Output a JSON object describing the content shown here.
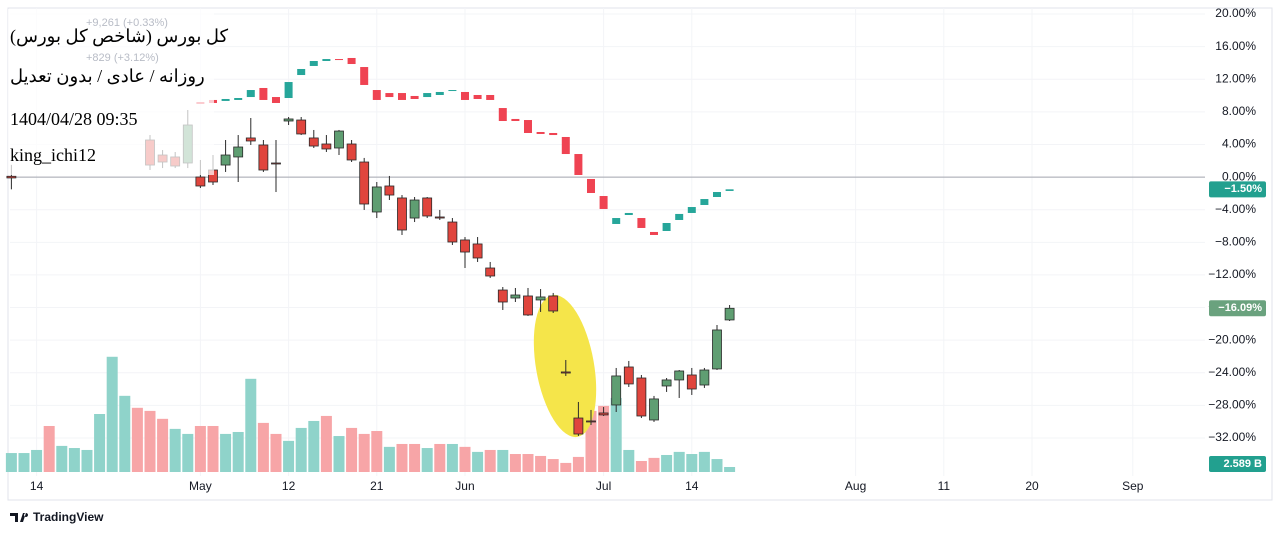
{
  "chart_data": {
    "type": "candlestick",
    "title": "کل بورس (شاخص کل بورس)",
    "subtitle": "روزانه / عادی / بدون تعدیل",
    "timestamp": "1404/04/28 09:35",
    "author": "king_ichi12",
    "legend_values": [
      "+9,261 (+0.33%)",
      "+829 (+3.12%)"
    ],
    "branding": "TradingView",
    "xlim": [
      -0.11,
      94.73
    ],
    "xticks": [
      {
        "value": 2,
        "label": "14"
      },
      {
        "value": 15,
        "label": "May"
      },
      {
        "value": 22,
        "label": "12"
      },
      {
        "value": 29,
        "label": "21"
      },
      {
        "value": 36,
        "label": "Jun"
      },
      {
        "value": 47,
        "label": "Jul"
      },
      {
        "value": 54,
        "label": "14"
      },
      {
        "value": 67,
        "label": "Aug"
      },
      {
        "value": 74,
        "label": "11"
      },
      {
        "value": 81,
        "label": "20"
      },
      {
        "value": 89,
        "label": "Sep"
      }
    ],
    "ylim": [
      -36.17,
      20.74
    ],
    "yticks": [
      {
        "value": 20,
        "label": "20.00%"
      },
      {
        "value": 16,
        "label": "16.00%"
      },
      {
        "value": 12,
        "label": "12.00%"
      },
      {
        "value": 8,
        "label": "8.00%"
      },
      {
        "value": 4,
        "label": "4.00%"
      },
      {
        "value": 0,
        "label": "0.00%"
      },
      {
        "value": -4,
        "label": "−4.00%"
      },
      {
        "value": -8,
        "label": "−8.00%"
      },
      {
        "value": -12,
        "label": "−12.00%"
      },
      {
        "value": -16,
        "label": "−16.00%"
      },
      {
        "value": -20,
        "label": "−20.00%"
      },
      {
        "value": -24,
        "label": "−24.00%"
      },
      {
        "value": -28,
        "label": "−28.00%"
      },
      {
        "value": -32,
        "label": "−32.00%"
      }
    ],
    "baseline": 0,
    "y2lim": [
      0,
      240
    ],
    "series": [
      {
        "color_up": "#5f9e72",
        "color_down": "#e0453d",
        "outline": "#2a2a2a",
        "badge_color": "#6aa27e",
        "x": [
          0,
          11,
          12,
          13,
          14,
          15,
          16,
          17,
          18,
          19,
          20,
          21,
          22,
          23,
          24,
          25,
          26,
          27,
          28,
          29,
          30,
          31,
          32,
          33,
          34,
          35,
          36,
          37,
          38,
          39,
          40,
          41,
          42,
          43,
          44,
          45,
          46,
          47,
          48,
          49,
          50,
          51,
          52,
          53,
          54,
          55,
          56,
          57
        ],
        "open": [
          0.1,
          4.55,
          2.71,
          2.47,
          1.73,
          0.01,
          0.87,
          1.48,
          2.47,
          4.8,
          3.94,
          1.73,
          6.88,
          7.0,
          4.8,
          4.06,
          3.57,
          4.06,
          1.85,
          -4.28,
          -1.09,
          -2.56,
          -5.02,
          -2.56,
          -4.89,
          -5.51,
          -7.71,
          -8.2,
          -11.15,
          -13.85,
          -14.83,
          -14.58,
          -15.07,
          -14.58,
          -23.9,
          -29.55,
          -29.91,
          -28.93,
          -27.95,
          -23.29,
          -24.64,
          -29.79,
          -25.62,
          -24.88,
          -24.27,
          -25.5,
          -23.53,
          -17.52
        ],
        "high": [
          1.5,
          5.16,
          3.32,
          3.08,
          8.23,
          2.1,
          2.71,
          4.55,
          5.16,
          7.25,
          4.55,
          4.55,
          7.37,
          7.37,
          5.78,
          5.16,
          5.78,
          4.55,
          2.35,
          -0.6,
          0.14,
          -2.2,
          -2.44,
          -2.44,
          -4.03,
          -5.02,
          -7.35,
          -7.35,
          -10.41,
          -13.48,
          -13.6,
          -13.6,
          -13.73,
          -14.21,
          -22.43,
          -27.58,
          -28.56,
          -28.2,
          -23.41,
          -22.55,
          -24.27,
          -26.84,
          -24.64,
          -23.66,
          -23.41,
          -23.41,
          -18.14,
          -15.69
        ],
        "low": [
          -1.5,
          0.87,
          1.11,
          1.11,
          1.11,
          -1.34,
          -0.97,
          0.63,
          -0.6,
          3.94,
          0.63,
          -1.83,
          6.39,
          5.16,
          3.57,
          3.08,
          2.71,
          1.85,
          -4.03,
          -5.02,
          -2.81,
          -7.1,
          -5.51,
          -5.02,
          -5.26,
          -8.33,
          -11.15,
          -10.41,
          -12.37,
          -16.3,
          -15.32,
          -17.03,
          -16.54,
          -16.67,
          -24.39,
          -31.75,
          -30.4,
          -29.3,
          -28.81,
          -25.74,
          -29.55,
          -30.03,
          -26.35,
          -27.09,
          -26.72,
          -25.86,
          -23.66,
          -17.65
        ],
        "close": [
          -0.1,
          1.48,
          1.85,
          1.36,
          6.39,
          -1.09,
          -0.6,
          2.71,
          3.69,
          4.43,
          0.87,
          1.61,
          7.13,
          5.29,
          3.81,
          3.45,
          5.65,
          2.1,
          -3.3,
          -1.21,
          -2.2,
          -6.49,
          -2.81,
          -4.77,
          -5.02,
          -7.96,
          -9.19,
          -9.92,
          -12.13,
          -15.32,
          -14.46,
          -16.91,
          -14.7,
          -16.42,
          -24.03,
          -31.51,
          -30.03,
          -29.17,
          -24.39,
          -25.37,
          -29.3,
          -27.21,
          -24.88,
          -23.78,
          -25.99,
          -23.66,
          -18.75,
          -16.09
        ],
        "last_label": "−16.09%"
      },
      {
        "color_up": "#26a69a",
        "color_down": "#ef4352",
        "badge_color": "#22a08f",
        "x": [
          0,
          15,
          16,
          17,
          18,
          19,
          20,
          21,
          22,
          23,
          24,
          25,
          26,
          27,
          28,
          29,
          30,
          31,
          32,
          33,
          34,
          35,
          36,
          37,
          38,
          39,
          40,
          41,
          42,
          43,
          44,
          45,
          46,
          47,
          48,
          49,
          50,
          51,
          52,
          53,
          54,
          55,
          56,
          57
        ],
        "open": [
          0,
          9.21,
          9.46,
          9.34,
          9.46,
          9.82,
          10.93,
          9.82,
          9.7,
          12.52,
          13.63,
          14.24,
          14.48,
          14.61,
          13.5,
          10.68,
          10.31,
          10.31,
          9.95,
          9.82,
          10.07,
          10.56,
          10.44,
          10.07,
          10.07,
          8.47,
          7.13,
          7.0,
          5.53,
          5.41,
          4.92,
          2.83,
          -0.23,
          -2.32,
          -5.75,
          -4.65,
          -5.02,
          -6.73,
          -6.61,
          -5.26,
          -4.4,
          -3.42,
          -2.44,
          -1.7
        ],
        "close": [
          0,
          8.97,
          9.09,
          9.58,
          9.7,
          10.68,
          9.46,
          9.09,
          11.66,
          13.26,
          14.24,
          14.48,
          14.36,
          13.87,
          11.3,
          9.46,
          9.82,
          9.46,
          9.58,
          10.31,
          10.44,
          10.68,
          9.46,
          9.58,
          9.46,
          6.88,
          6.88,
          5.41,
          5.29,
          5.16,
          2.83,
          0.26,
          -1.95,
          -3.91,
          -5.02,
          -4.4,
          -6.24,
          -7.1,
          -5.63,
          -4.52,
          -3.67,
          -2.69,
          -1.83,
          -1.5
        ],
        "last_label": "−1.50%"
      }
    ],
    "volume": {
      "axis": "y2",
      "badge_color": "#22a08f",
      "x": [
        0,
        1,
        2,
        3,
        4,
        5,
        6,
        7,
        8,
        9,
        10,
        11,
        12,
        13,
        14,
        15,
        16,
        17,
        18,
        19,
        20,
        21,
        22,
        23,
        24,
        25,
        26,
        27,
        28,
        29,
        30,
        31,
        32,
        33,
        34,
        35,
        36,
        37,
        38,
        39,
        40,
        41,
        42,
        43,
        44,
        45,
        46,
        47,
        48,
        49,
        50,
        51,
        52,
        53,
        54,
        55,
        56,
        57
      ],
      "values": [
        9.8,
        9.8,
        11.4,
        23.8,
        13.5,
        12.4,
        11.4,
        30.0,
        59.6,
        39.4,
        33.2,
        31.6,
        27.5,
        22.3,
        19.7,
        23.8,
        23.8,
        19.7,
        20.7,
        48.2,
        25.4,
        19.7,
        16.1,
        22.8,
        26.4,
        29.0,
        18.6,
        22.8,
        19.7,
        21.2,
        13.0,
        14.5,
        14.5,
        12.4,
        14.5,
        14.5,
        13.0,
        10.4,
        11.4,
        11.4,
        9.3,
        9.3,
        8.3,
        6.7,
        4.7,
        7.8,
        31.6,
        34.2,
        38.3,
        11.4,
        5.7,
        7.3,
        8.8,
        10.4,
        9.3,
        10.4,
        6.7,
        2.589
      ],
      "colors": [
        "#8fd3ca",
        "#8fd3ca",
        "#8fd3ca",
        "#f7a5a7",
        "#8fd3ca",
        "#8fd3ca",
        "#8fd3ca",
        "#8fd3ca",
        "#8fd3ca",
        "#8fd3ca",
        "#f7a5a7",
        "#f7a5a7",
        "#f7a5a7",
        "#8fd3ca",
        "#8fd3ca",
        "#f7a5a7",
        "#f7a5a7",
        "#8fd3ca",
        "#8fd3ca",
        "#8fd3ca",
        "#f7a5a7",
        "#f7a5a7",
        "#8fd3ca",
        "#8fd3ca",
        "#8fd3ca",
        "#f7a5a7",
        "#8fd3ca",
        "#f7a5a7",
        "#f7a5a7",
        "#f7a5a7",
        "#8fd3ca",
        "#f7a5a7",
        "#f7a5a7",
        "#8fd3ca",
        "#f7a5a7",
        "#8fd3ca",
        "#f7a5a7",
        "#8fd3ca",
        "#f7a5a7",
        "#8fd3ca",
        "#f7a5a7",
        "#f7a5a7",
        "#f7a5a7",
        "#f7a5a7",
        "#f7a5a7",
        "#f7a5a7",
        "#f7a5a7",
        "#f7a5a7",
        "#8fd3ca",
        "#8fd3ca",
        "#f7a5a7",
        "#f7a5a7",
        "#8fd3ca",
        "#8fd3ca",
        "#8fd3ca",
        "#8fd3ca",
        "#8fd3ca",
        "#8fd3ca"
      ],
      "last_label": "2.589 B"
    }
  }
}
